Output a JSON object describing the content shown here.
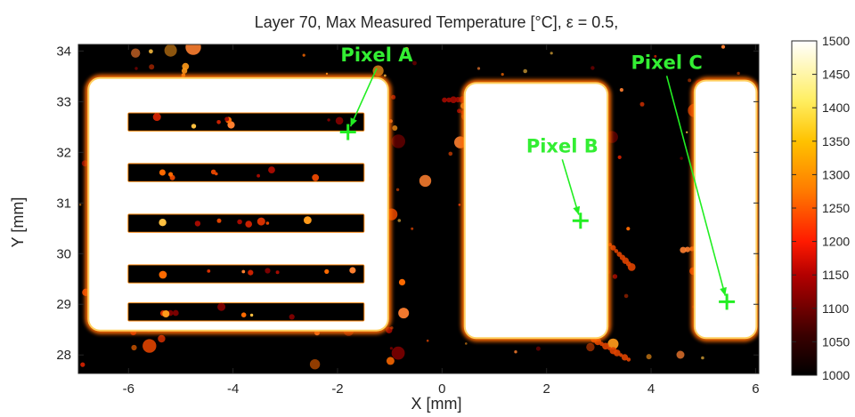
{
  "chart_data": {
    "type": "heatmap",
    "title": "Layer 70, Max Measured Temperature [°C], ε = 0.5,",
    "xlabel": "X [mm]",
    "ylabel": "Y [mm]",
    "xlim": [
      -7.3,
      6.3
    ],
    "ylim": [
      27.6,
      34.2
    ],
    "xticks": [
      -6,
      -4,
      -2,
      0,
      2,
      4,
      6
    ],
    "yticks": [
      28,
      29,
      30,
      31,
      32,
      33,
      34
    ],
    "colorbar": {
      "min": 1000,
      "max": 1500,
      "ticks": [
        1000,
        1050,
        1100,
        1150,
        1200,
        1250,
        1300,
        1350,
        1400,
        1450,
        1500
      ],
      "colormap": "hot"
    },
    "regions": [
      {
        "shape": "frame",
        "x0": -6.75,
        "x1": -1.05,
        "y0": 28.5,
        "y1": 33.45,
        "temperature": 1500
      },
      {
        "shape": "rect",
        "x0": 0.45,
        "x1": 3.15,
        "y0": 28.35,
        "y1": 33.35,
        "temperature": 1500
      },
      {
        "shape": "rect",
        "x0": 4.85,
        "x1": 6.0,
        "y0": 28.35,
        "y1": 33.4,
        "temperature": 1500
      }
    ],
    "annotations": [
      {
        "label": "Pixel A",
        "x": -1.8,
        "y": 32.4,
        "label_x": -1.25,
        "label_y": 33.8
      },
      {
        "label": "Pixel B",
        "x": 2.65,
        "y": 30.65,
        "label_x": 2.3,
        "label_y": 32.0
      },
      {
        "label": "Pixel C",
        "x": 5.45,
        "y": 29.05,
        "label_x": 4.3,
        "label_y": 33.65
      }
    ],
    "marker_color": "#22ee22",
    "background_color": "#000000"
  }
}
